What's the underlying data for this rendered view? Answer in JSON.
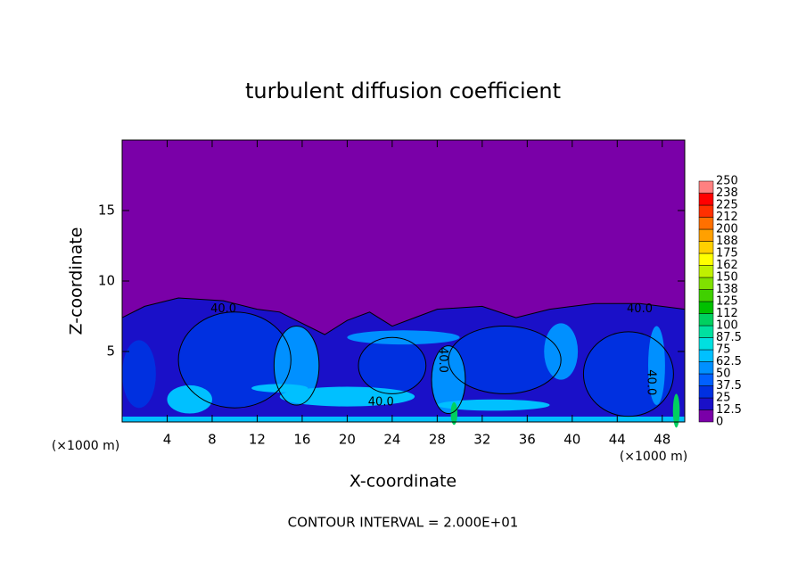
{
  "chart_data": {
    "type": "contour",
    "title": "turbulent diffusion coefficient",
    "xlabel": "X-coordinate",
    "ylabel": "Z-coordinate",
    "xunit": "(×1000 m)",
    "yunit": "(×1000 m)",
    "footer": "CONTOUR INTERVAL = 2.000E+01",
    "contour_label": {
      "value": 40,
      "label": "40.0"
    },
    "xlim": [
      0,
      50
    ],
    "ylim": [
      0,
      20
    ],
    "xticks": [
      4,
      8,
      12,
      16,
      20,
      24,
      28,
      32,
      36,
      40,
      44,
      48
    ],
    "yticks": [
      5,
      10,
      15
    ],
    "levels": [
      0,
      12.5,
      25,
      37.5,
      50,
      62.5,
      75,
      87.5,
      100,
      {
        "value": 112.5,
        "label": "112"
      },
      125,
      {
        "value": 137.5,
        "label": "138"
      },
      150,
      {
        "value": 162.5,
        "label": "162"
      },
      175,
      {
        "value": 187.5,
        "label": "188"
      },
      200,
      {
        "value": 212.5,
        "label": "212"
      },
      225,
      {
        "value": 237.5,
        "label": "238"
      },
      250
    ],
    "colors": [
      "#7a00a8",
      "#1a10c8",
      "#0030e0",
      "#0060ff",
      "#0090ff",
      "#00c0ff",
      "#00e0e0",
      "#00e0a0",
      "#00d060",
      "#00c000",
      "#40d000",
      "#80e000",
      "#c0f000",
      "#ffff00",
      "#ffd000",
      "#ffa000",
      "#ff7000",
      "#ff3000",
      "#ff0000",
      "#ff8080"
    ]
  }
}
